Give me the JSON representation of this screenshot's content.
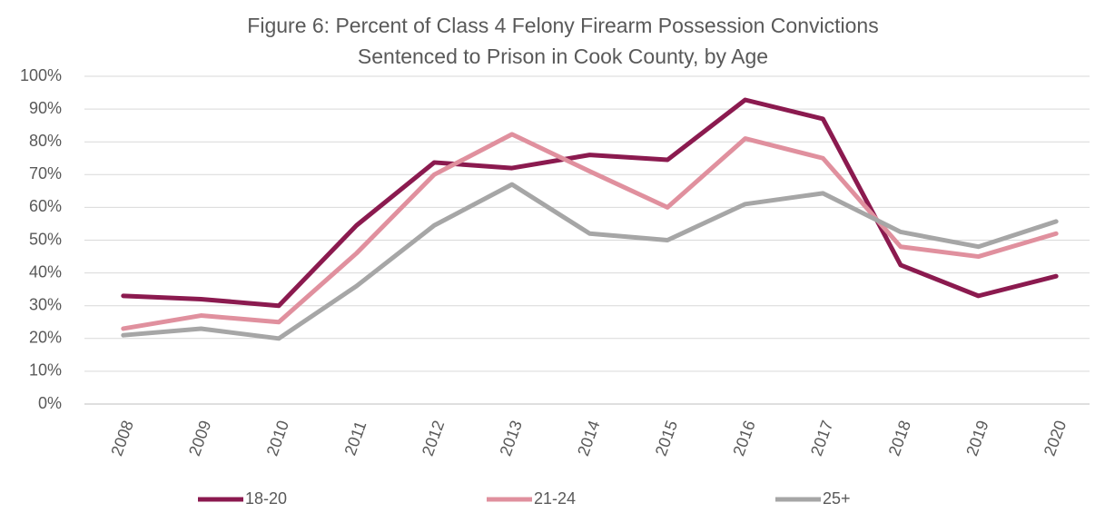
{
  "chart_data": {
    "type": "line",
    "title": [
      "Figure 6: Percent of Class 4 Felony Firearm Possession Convictions",
      "Sentenced to Prison in Cook County, by Age"
    ],
    "categories": [
      "2008",
      "2009",
      "2010",
      "2011",
      "2012",
      "2013",
      "2014",
      "2015",
      "2016",
      "2017",
      "2018",
      "2019",
      "2020"
    ],
    "series": [
      {
        "name": "18-20",
        "color": "#8b1a4f",
        "values": [
          33,
          32,
          30,
          54.5,
          73.7,
          72,
          76,
          74.5,
          92.8,
          87,
          42.4,
          33,
          39
        ]
      },
      {
        "name": "21-24",
        "color": "#e0909e",
        "values": [
          23,
          27,
          25,
          46,
          70,
          82.3,
          71,
          60,
          81,
          75,
          48,
          45,
          52
        ]
      },
      {
        "name": "25+",
        "color": "#a6a6a6",
        "values": [
          21,
          23,
          20,
          36,
          54.5,
          67,
          52,
          50,
          61,
          64.3,
          52.5,
          48,
          55.7
        ]
      }
    ],
    "ylim": [
      0,
      100
    ],
    "yticks": [
      {
        "value": 0,
        "label": "0%"
      },
      {
        "value": 10,
        "label": "10%"
      },
      {
        "value": 20,
        "label": "20%"
      },
      {
        "value": 30,
        "label": "30%"
      },
      {
        "value": 40,
        "label": "40%"
      },
      {
        "value": 50,
        "label": "50%"
      },
      {
        "value": 60,
        "label": "60%"
      },
      {
        "value": 70,
        "label": "70%"
      },
      {
        "value": 80,
        "label": "80%"
      },
      {
        "value": 90,
        "label": "90%"
      },
      {
        "value": 100,
        "label": "100%"
      }
    ],
    "grid": true,
    "legend": "bottom"
  }
}
